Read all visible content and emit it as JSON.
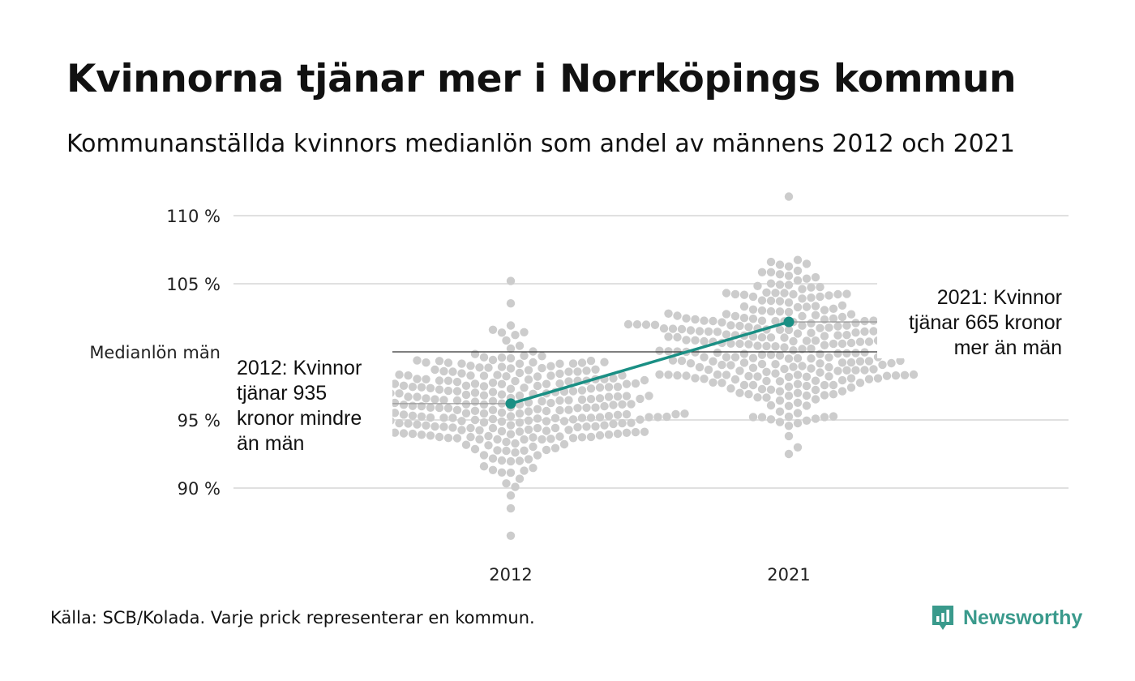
{
  "title": "Kvinnorna tjänar mer i Norrköpings kommun",
  "subtitle": "Kommunanställda kvinnors medianlön som andel av männens 2012 och 2021",
  "footer": "Källa: SCB/Kolada. Varje prick representerar en kommun.",
  "brand": {
    "name": "Newsworthy",
    "icon": "newsworthy-logo-icon",
    "color": "#3a9a8c"
  },
  "chart_data": {
    "type": "scatter",
    "categories": [
      "2012",
      "2021"
    ],
    "y_ticks": [
      {
        "value": 90,
        "label": "90 %"
      },
      {
        "value": 95,
        "label": "95 %"
      },
      {
        "value": 100,
        "label": "Medianlön män"
      },
      {
        "value": 105,
        "label": "105 %"
      },
      {
        "value": 110,
        "label": "110 %"
      }
    ],
    "ylim": [
      86,
      111.5
    ],
    "grid": true,
    "reference_line": {
      "value": 100,
      "label": "Medianlön män"
    },
    "highlight": {
      "color": "#1a8f84",
      "points": [
        {
          "x": "2012",
          "y": 96.2
        },
        {
          "x": "2021",
          "y": 102.2
        }
      ]
    },
    "annotations": [
      {
        "x": "2012",
        "lines": [
          "2012: Kvinnor",
          "tjänar 935",
          "kronor mindre",
          "än män"
        ]
      },
      {
        "x": "2021",
        "lines": [
          "2021: Kvinnor",
          "tjänar 665 kronor",
          "mer än män"
        ]
      }
    ],
    "distribution": [
      {
        "x": "2012",
        "min": 86.5,
        "max": 105.2,
        "center": 96.0,
        "spread": 2.3,
        "count": 290,
        "color": "#cccccc"
      },
      {
        "x": "2021",
        "min": 92.5,
        "max": 111.4,
        "center": 100.6,
        "spread": 2.6,
        "count": 290,
        "color": "#cccccc"
      }
    ]
  }
}
